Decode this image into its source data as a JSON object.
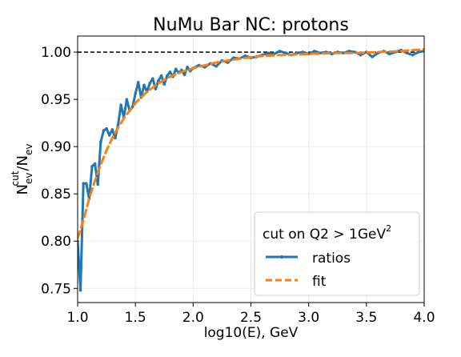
{
  "chart_data": {
    "type": "line",
    "title": "NuMu Bar NC: protons",
    "xlabel": "log10(E), GeV",
    "ylabel": {
      "base": "N",
      "sub1": "ev",
      "sup": "cut",
      "slash": "/N",
      "sub2": "ev"
    },
    "xlim": [
      1.0,
      4.0
    ],
    "ylim": [
      0.735,
      1.017
    ],
    "xticks": [
      1.0,
      1.5,
      2.0,
      2.5,
      3.0,
      3.5,
      4.0
    ],
    "xtick_labels": [
      "1.0",
      "1.5",
      "2.0",
      "2.5",
      "3.0",
      "3.5",
      "4.0"
    ],
    "yticks": [
      0.75,
      0.8,
      0.85,
      0.9,
      0.95,
      1.0
    ],
    "ytick_labels": [
      "0.75",
      "0.80",
      "0.85",
      "0.90",
      "0.95",
      "1.00"
    ],
    "grid": true,
    "reference_line": {
      "y": 1.0,
      "style": "dashed",
      "color": "#000000"
    },
    "legend": {
      "placement": "lower-right",
      "title": "cut on Q2 > 1GeV",
      "title_sup": "2",
      "entries": [
        "ratios",
        "fit"
      ]
    },
    "series": [
      {
        "name": "ratios",
        "color": "#1f77b4",
        "style": "solid-with-markers",
        "x": [
          1.0,
          1.025,
          1.05,
          1.075,
          1.1,
          1.125,
          1.15,
          1.175,
          1.2,
          1.225,
          1.25,
          1.275,
          1.3,
          1.325,
          1.35,
          1.375,
          1.4,
          1.425,
          1.45,
          1.475,
          1.5,
          1.525,
          1.55,
          1.575,
          1.6,
          1.625,
          1.65,
          1.675,
          1.7,
          1.725,
          1.75,
          1.775,
          1.8,
          1.825,
          1.85,
          1.875,
          1.9,
          1.925,
          1.95,
          1.975,
          2.0,
          2.05,
          2.1,
          2.15,
          2.2,
          2.25,
          2.3,
          2.35,
          2.4,
          2.45,
          2.5,
          2.55,
          2.6,
          2.65,
          2.7,
          2.75,
          2.8,
          2.85,
          2.9,
          2.95,
          3.0,
          3.05,
          3.1,
          3.15,
          3.2,
          3.25,
          3.3,
          3.35,
          3.4,
          3.45,
          3.5,
          3.55,
          3.6,
          3.65,
          3.7,
          3.75,
          3.8,
          3.85,
          3.9,
          3.95,
          4.0
        ],
        "values": [
          0.8,
          0.748,
          0.861,
          0.861,
          0.845,
          0.879,
          0.882,
          0.86,
          0.905,
          0.917,
          0.919,
          0.912,
          0.918,
          0.909,
          0.923,
          0.944,
          0.931,
          0.95,
          0.938,
          0.942,
          0.956,
          0.968,
          0.952,
          0.965,
          0.958,
          0.967,
          0.972,
          0.961,
          0.97,
          0.975,
          0.966,
          0.975,
          0.979,
          0.974,
          0.982,
          0.978,
          0.981,
          0.976,
          0.984,
          0.98,
          0.983,
          0.986,
          0.984,
          0.988,
          0.985,
          0.991,
          0.989,
          0.994,
          0.993,
          0.996,
          0.994,
          0.995,
          0.997,
          0.999,
          0.998,
          1.001,
          0.999,
          0.997,
          0.999,
          1.0,
          0.998,
          1.001,
          0.999,
          1.0,
          0.998,
          1.0,
          0.999,
          1.001,
          1.0,
          0.997,
          1.0,
          0.995,
          0.999,
          1.001,
          0.998,
          1.0,
          1.002,
          0.999,
          0.997,
          1.0,
          1.001
        ]
      },
      {
        "name": "fit",
        "color": "#ff7f0e",
        "style": "dashed",
        "x": [
          1.0,
          1.05,
          1.1,
          1.15,
          1.2,
          1.25,
          1.3,
          1.35,
          1.4,
          1.5,
          1.6,
          1.7,
          1.8,
          1.9,
          2.0,
          2.2,
          2.4,
          2.6,
          2.8,
          3.0,
          3.2,
          3.4,
          3.6,
          3.8,
          4.0
        ],
        "values": [
          0.803,
          0.822,
          0.845,
          0.864,
          0.881,
          0.896,
          0.909,
          0.92,
          0.93,
          0.946,
          0.958,
          0.967,
          0.974,
          0.979,
          0.983,
          0.989,
          0.993,
          0.996,
          0.997,
          0.998,
          0.999,
          0.999,
          1.0,
          1.001,
          1.003
        ]
      }
    ]
  }
}
